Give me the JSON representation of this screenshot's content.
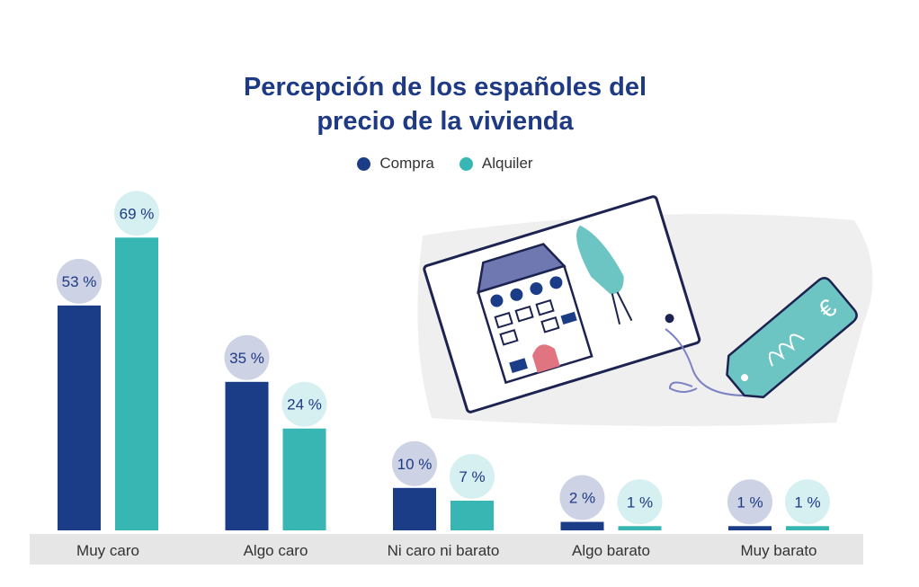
{
  "chart_data": {
    "type": "bar",
    "title": "Percepción de los españoles del precio de la vivienda",
    "title_lines": [
      "Percepción de los españoles del",
      "precio de la vivienda"
    ],
    "categories": [
      "Muy caro",
      "Algo caro",
      "Ni caro ni barato",
      "Algo barato",
      "Muy barato"
    ],
    "series": [
      {
        "name": "Compra",
        "values": [
          53,
          35,
          10,
          2,
          1
        ],
        "labels": [
          "53 %",
          "35 %",
          "10 %",
          "2 %",
          "1 %"
        ],
        "color": "#1b3d87",
        "label_bg": "#cdd2e4"
      },
      {
        "name": "Alquiler",
        "values": [
          69,
          24,
          7,
          1,
          1
        ],
        "labels": [
          "69 %",
          "24 %",
          "7 %",
          "1 %",
          "1 %"
        ],
        "color": "#37b6b4",
        "label_bg": "#d6eff0"
      }
    ],
    "ylim": [
      0,
      70
    ],
    "unit": "%",
    "grid": false,
    "legend_position": "top-center",
    "axis_band_color": "#e6e6e6"
  },
  "illustration": {
    "icon": "house-price-tag-illustration",
    "tag_symbol": "€"
  }
}
